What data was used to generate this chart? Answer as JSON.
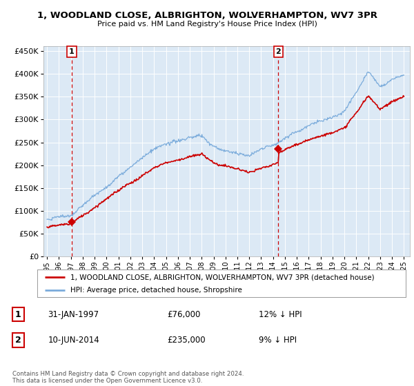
{
  "title": "1, WOODLAND CLOSE, ALBRIGHTON, WOLVERHAMPTON, WV7 3PR",
  "subtitle": "Price paid vs. HM Land Registry's House Price Index (HPI)",
  "fig_bg_color": "#ffffff",
  "plot_bg_color": "#dce9f5",
  "ylim": [
    0,
    460000
  ],
  "yticks": [
    0,
    50000,
    100000,
    150000,
    200000,
    250000,
    300000,
    350000,
    400000,
    450000
  ],
  "xlim_left": 1994.7,
  "xlim_right": 2025.5,
  "xtick_years": [
    1995,
    1996,
    1997,
    1998,
    1999,
    2000,
    2001,
    2002,
    2003,
    2004,
    2005,
    2006,
    2007,
    2008,
    2009,
    2010,
    2011,
    2012,
    2013,
    2014,
    2015,
    2016,
    2017,
    2018,
    2019,
    2020,
    2021,
    2022,
    2023,
    2024,
    2025
  ],
  "sale1_date": 1997.08,
  "sale1_price": 76000,
  "sale1_label": "1",
  "sale2_date": 2014.44,
  "sale2_price": 235000,
  "sale2_label": "2",
  "legend_line1": "1, WOODLAND CLOSE, ALBRIGHTON, WOLVERHAMPTON, WV7 3PR (detached house)",
  "legend_line2": "HPI: Average price, detached house, Shropshire",
  "table_row1": [
    "1",
    "31-JAN-1997",
    "£76,000",
    "12% ↓ HPI"
  ],
  "table_row2": [
    "2",
    "10-JUN-2014",
    "£235,000",
    "9% ↓ HPI"
  ],
  "footnote": "Contains HM Land Registry data © Crown copyright and database right 2024.\nThis data is licensed under the Open Government Licence v3.0.",
  "red_color": "#cc0000",
  "blue_color": "#7aabdb",
  "grid_color": "#ffffff",
  "hpi_seed": 12,
  "prop_seed": 7
}
